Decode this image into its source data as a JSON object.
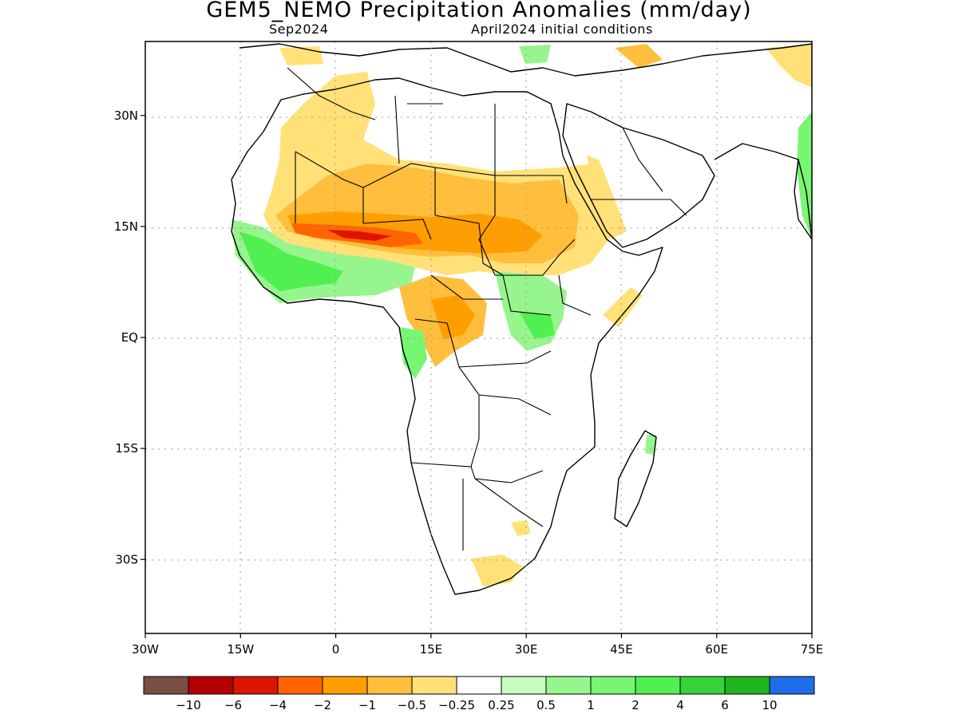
{
  "title": "GEM5_NEMO Precipitation Anomalies (mm/day)",
  "subtitle_left": "Sep2024",
  "subtitle_right": "April2024 initial conditions",
  "map": {
    "lon_range": [
      -30,
      75
    ],
    "lat_range": [
      -40,
      40
    ],
    "lon_ticks": [
      -30,
      -15,
      0,
      15,
      30,
      45,
      60,
      75
    ],
    "lon_tick_labels": [
      "30W",
      "15W",
      "0",
      "15E",
      "30E",
      "45E",
      "60E",
      "75E"
    ],
    "lat_ticks": [
      30,
      15,
      0,
      -15,
      -30
    ],
    "lat_tick_labels": [
      "30N",
      "15N",
      "EQ",
      "15S",
      "30S"
    ],
    "grid": "dotted"
  },
  "colorbar": {
    "colors": [
      "#7b4e43",
      "#b40000",
      "#dc1400",
      "#ff6400",
      "#ff9e00",
      "#ffbe3c",
      "#ffe178",
      "#ffffff",
      "#c8ffbe",
      "#96f58c",
      "#78f573",
      "#50f050",
      "#37d23c",
      "#1eb41e",
      "#1e6eeb"
    ],
    "boundaries": [
      -10,
      -6,
      -4,
      -2,
      -1,
      -0.5,
      -0.25,
      0.25,
      0.5,
      1,
      2,
      4,
      6,
      10
    ],
    "labels": [
      "−10",
      "−6",
      "−4",
      "−2",
      "−1",
      "−0.5",
      "−0.25",
      "0.25",
      "0.5",
      "1",
      "2",
      "4",
      "6",
      "10"
    ]
  }
}
